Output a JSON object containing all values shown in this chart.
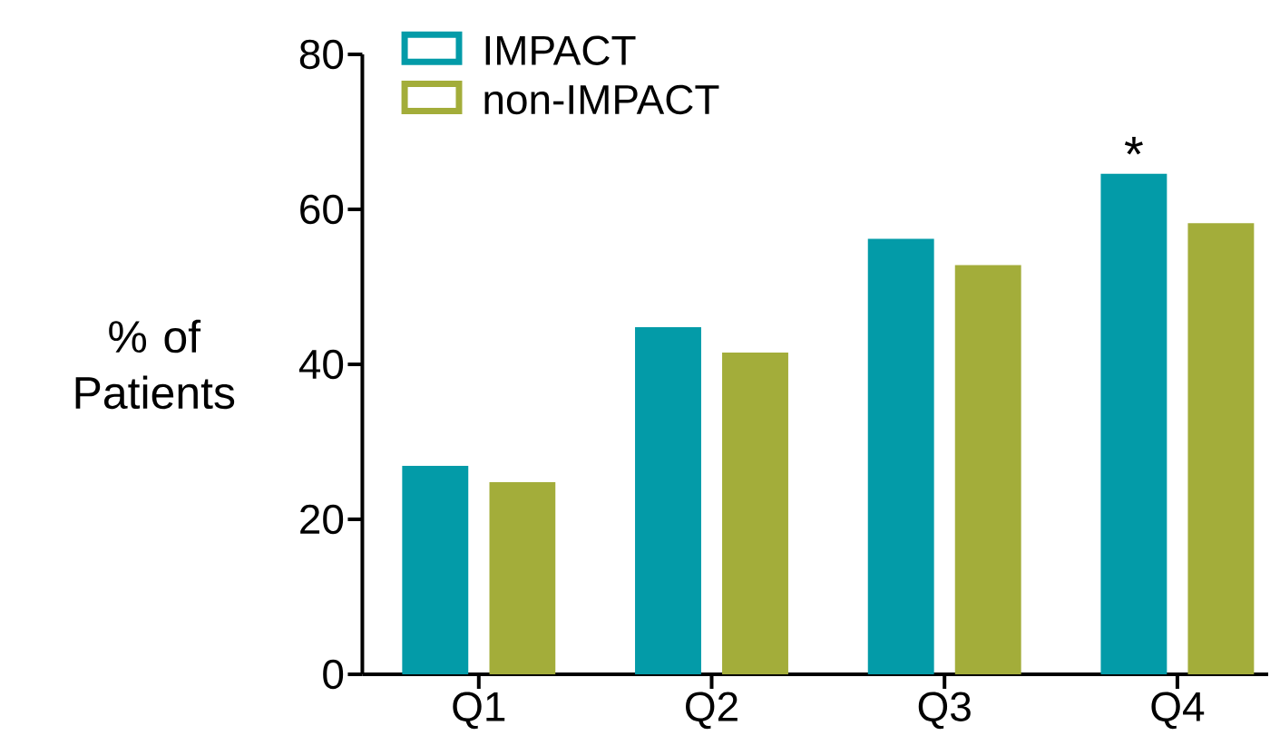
{
  "chart_data": {
    "type": "bar",
    "ylabel": "% of Patients",
    "categories": [
      "Q1",
      "Q2",
      "Q3",
      "Q4"
    ],
    "series": [
      {
        "name": "IMPACT",
        "color": "#039ba8",
        "values": [
          26.9,
          44.8,
          56.2,
          64.6
        ]
      },
      {
        "name": "non-IMPACT",
        "color": "#a3ad3a",
        "values": [
          24.8,
          41.5,
          52.8,
          58.2
        ]
      }
    ],
    "ylim": [
      0,
      80
    ],
    "yticks": [
      0,
      20,
      40,
      60,
      80
    ],
    "annotations": [
      "*"
    ],
    "legend": "top left",
    "grid": false
  }
}
